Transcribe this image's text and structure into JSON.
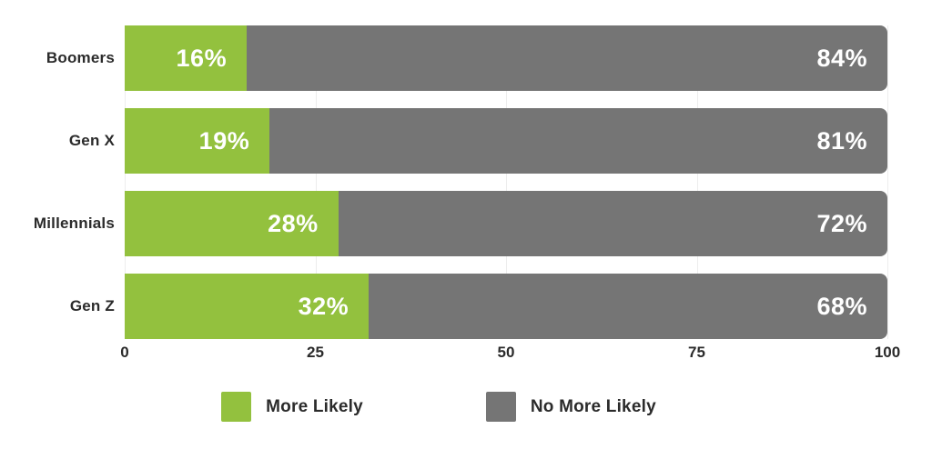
{
  "chart_data": {
    "type": "bar",
    "orientation": "horizontal",
    "stacked": true,
    "title": "",
    "categories": [
      "Boomers",
      "Gen X",
      "Millennials",
      "Gen Z"
    ],
    "series": [
      {
        "name": "More Likely",
        "color": "#93C13E",
        "values": [
          16,
          19,
          28,
          32
        ],
        "labels": [
          "16%",
          "19%",
          "28%",
          "32%"
        ]
      },
      {
        "name": "No More Likely",
        "color": "#757575",
        "values": [
          84,
          81,
          72,
          68
        ],
        "labels": [
          "84%",
          "81%",
          "72%",
          "68%"
        ]
      }
    ],
    "xlim": [
      0,
      100
    ],
    "x_ticks": [
      0,
      25,
      50,
      75,
      100
    ],
    "x_tick_labels": [
      "0",
      "25",
      "50",
      "75",
      "100"
    ],
    "grid": "vertical-faint",
    "legend_position": "bottom"
  },
  "style": {
    "background": "#ffffff",
    "grid_color": "#ededed",
    "axis_label_color": "#2b2b2b",
    "value_label_color": "#ffffff"
  }
}
